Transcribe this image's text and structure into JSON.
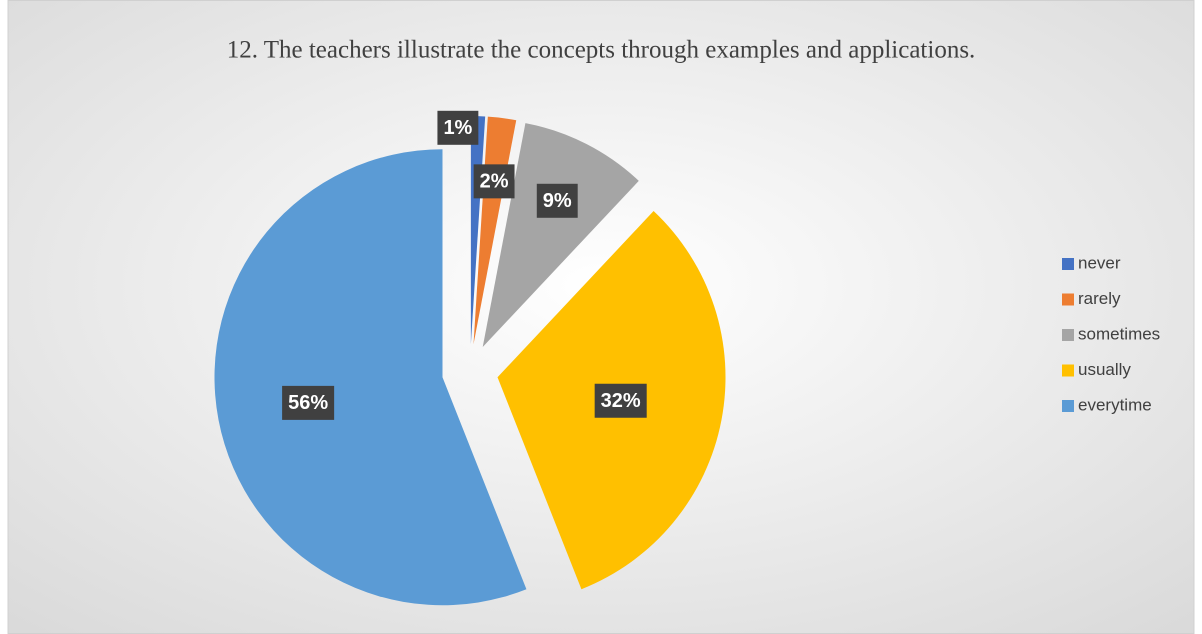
{
  "chart_data": {
    "type": "pie",
    "title": "12. The teachers illustrate the concepts through examples and applications.",
    "categories": [
      "never",
      "rarely",
      "sometimes",
      "usually",
      "everytime"
    ],
    "values": [
      1,
      2,
      9,
      32,
      56
    ],
    "value_labels": [
      "1%",
      "2%",
      "9%",
      "32%",
      "56%"
    ],
    "colors": [
      "#4472c4",
      "#ed7d31",
      "#a5a5a5",
      "#ffc000",
      "#5b9bd5"
    ],
    "legend": "right"
  }
}
